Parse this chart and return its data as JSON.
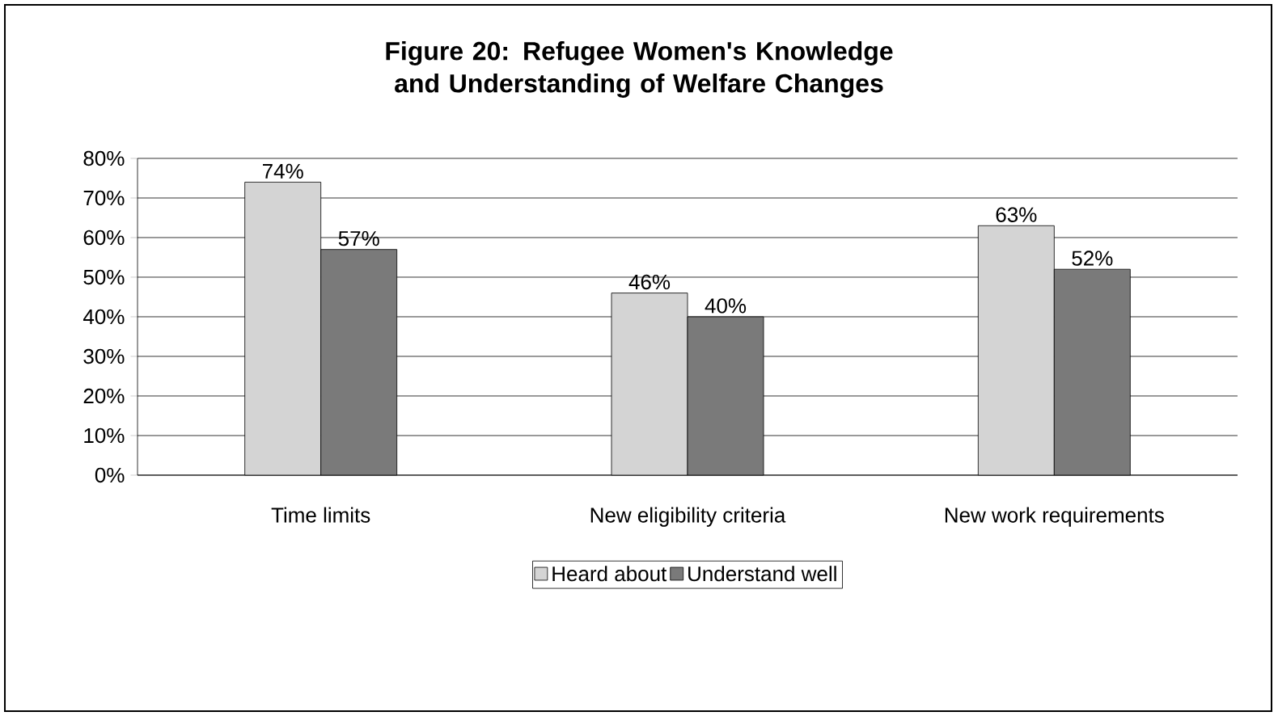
{
  "chart_data": {
    "type": "bar",
    "title": "Figure 20:  Refugee Women's Knowledge and Understanding of Welfare Changes",
    "categories": [
      "Time limits",
      "New eligibility criteria",
      "New work requirements"
    ],
    "series": [
      {
        "name": "Heard about",
        "color": "#d4d4d4",
        "values": [
          74,
          46,
          63
        ],
        "value_labels": [
          "74%",
          "46%",
          "63%"
        ]
      },
      {
        "name": "Understand well",
        "color": "#7a7a7a",
        "values": [
          57,
          40,
          52
        ],
        "value_labels": [
          "57%",
          "40%",
          "52%"
        ]
      }
    ],
    "ylim": [
      0,
      80
    ],
    "yticks": [
      {
        "value": 0,
        "label": "0%"
      },
      {
        "value": 10,
        "label": "10%"
      },
      {
        "value": 20,
        "label": "20%"
      },
      {
        "value": 30,
        "label": "30%"
      },
      {
        "value": 40,
        "label": "40%"
      },
      {
        "value": 50,
        "label": "50%"
      },
      {
        "value": 60,
        "label": "60%"
      },
      {
        "value": 70,
        "label": "70%"
      },
      {
        "value": 80,
        "label": "80%"
      }
    ],
    "grid": "y",
    "legend": "bottom"
  }
}
